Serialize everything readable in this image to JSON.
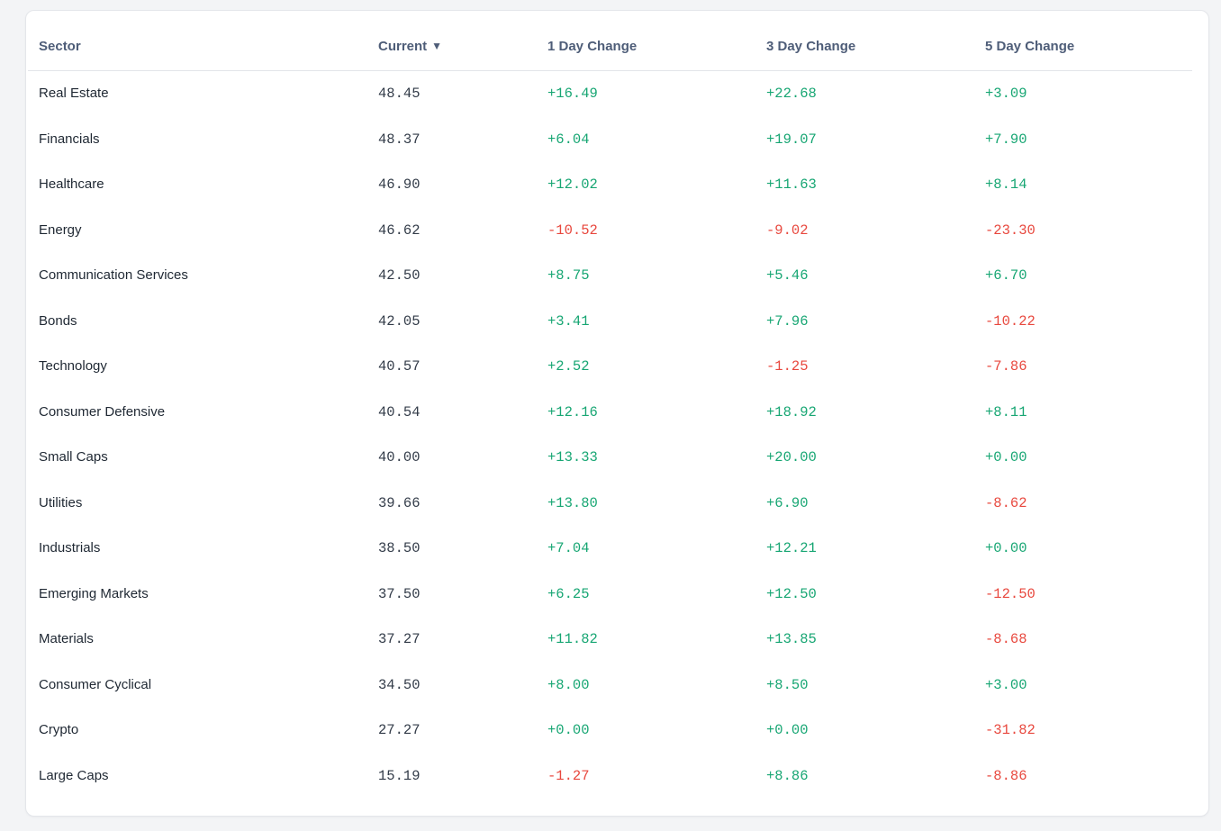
{
  "colors": {
    "page_background": "#f3f4f6",
    "card_background": "#ffffff",
    "card_border": "#e4e6ea",
    "divider": "#e3e5e9",
    "header_text": "#4e5d78",
    "sector_text": "#1f2833",
    "value_text": "#333c49",
    "positive": "#17a673",
    "negative": "#e8483e"
  },
  "table": {
    "columns": [
      {
        "label": "Sector"
      },
      {
        "label": "Current"
      },
      {
        "label": "1 Day Change"
      },
      {
        "label": "3 Day Change"
      },
      {
        "label": "5 Day Change"
      }
    ],
    "sort": {
      "column": "Current",
      "direction": "descending",
      "icon": "▼"
    },
    "rows": [
      {
        "sector": "Real Estate",
        "current": "48.45",
        "change_1d": "+16.49",
        "change_3d": "+22.68",
        "change_5d": "+3.09"
      },
      {
        "sector": "Financials",
        "current": "48.37",
        "change_1d": "+6.04",
        "change_3d": "+19.07",
        "change_5d": "+7.90"
      },
      {
        "sector": "Healthcare",
        "current": "46.90",
        "change_1d": "+12.02",
        "change_3d": "+11.63",
        "change_5d": "+8.14"
      },
      {
        "sector": "Energy",
        "current": "46.62",
        "change_1d": "-10.52",
        "change_3d": "-9.02",
        "change_5d": "-23.30"
      },
      {
        "sector": "Communication Services",
        "current": "42.50",
        "change_1d": "+8.75",
        "change_3d": "+5.46",
        "change_5d": "+6.70"
      },
      {
        "sector": "Bonds",
        "current": "42.05",
        "change_1d": "+3.41",
        "change_3d": "+7.96",
        "change_5d": "-10.22"
      },
      {
        "sector": "Technology",
        "current": "40.57",
        "change_1d": "+2.52",
        "change_3d": "-1.25",
        "change_5d": "-7.86"
      },
      {
        "sector": "Consumer Defensive",
        "current": "40.54",
        "change_1d": "+12.16",
        "change_3d": "+18.92",
        "change_5d": "+8.11"
      },
      {
        "sector": "Small Caps",
        "current": "40.00",
        "change_1d": "+13.33",
        "change_3d": "+20.00",
        "change_5d": "+0.00"
      },
      {
        "sector": "Utilities",
        "current": "39.66",
        "change_1d": "+13.80",
        "change_3d": "+6.90",
        "change_5d": "-8.62"
      },
      {
        "sector": "Industrials",
        "current": "38.50",
        "change_1d": "+7.04",
        "change_3d": "+12.21",
        "change_5d": "+0.00"
      },
      {
        "sector": "Emerging Markets",
        "current": "37.50",
        "change_1d": "+6.25",
        "change_3d": "+12.50",
        "change_5d": "-12.50"
      },
      {
        "sector": "Materials",
        "current": "37.27",
        "change_1d": "+11.82",
        "change_3d": "+13.85",
        "change_5d": "-8.68"
      },
      {
        "sector": "Consumer Cyclical",
        "current": "34.50",
        "change_1d": "+8.00",
        "change_3d": "+8.50",
        "change_5d": "+3.00"
      },
      {
        "sector": "Crypto",
        "current": "27.27",
        "change_1d": "+0.00",
        "change_3d": "+0.00",
        "change_5d": "-31.82"
      },
      {
        "sector": "Large Caps",
        "current": "15.19",
        "change_1d": "-1.27",
        "change_3d": "+8.86",
        "change_5d": "-8.86"
      }
    ]
  }
}
